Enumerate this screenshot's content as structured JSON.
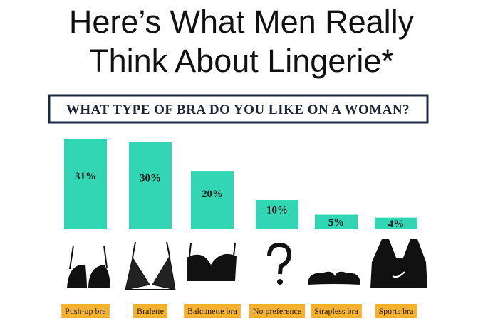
{
  "chart_data": {
    "type": "bar",
    "title": [
      "Here’s What Men Really",
      "Think About Lingerie*"
    ],
    "subtitle": "WHAT TYPE OF BRA DO YOU LIKE ON A WOMAN?",
    "categories": [
      "Push-up bra",
      "Bralette",
      "Balconette bra",
      "No preference",
      "Strapless bra",
      "Sports bra"
    ],
    "values": [
      31,
      30,
      20,
      10,
      5,
      4
    ],
    "value_labels": [
      "31%",
      "30%",
      "20%",
      "10%",
      "5%",
      "4%"
    ],
    "color": "#33d6b4",
    "label_color": "#f5b132"
  }
}
